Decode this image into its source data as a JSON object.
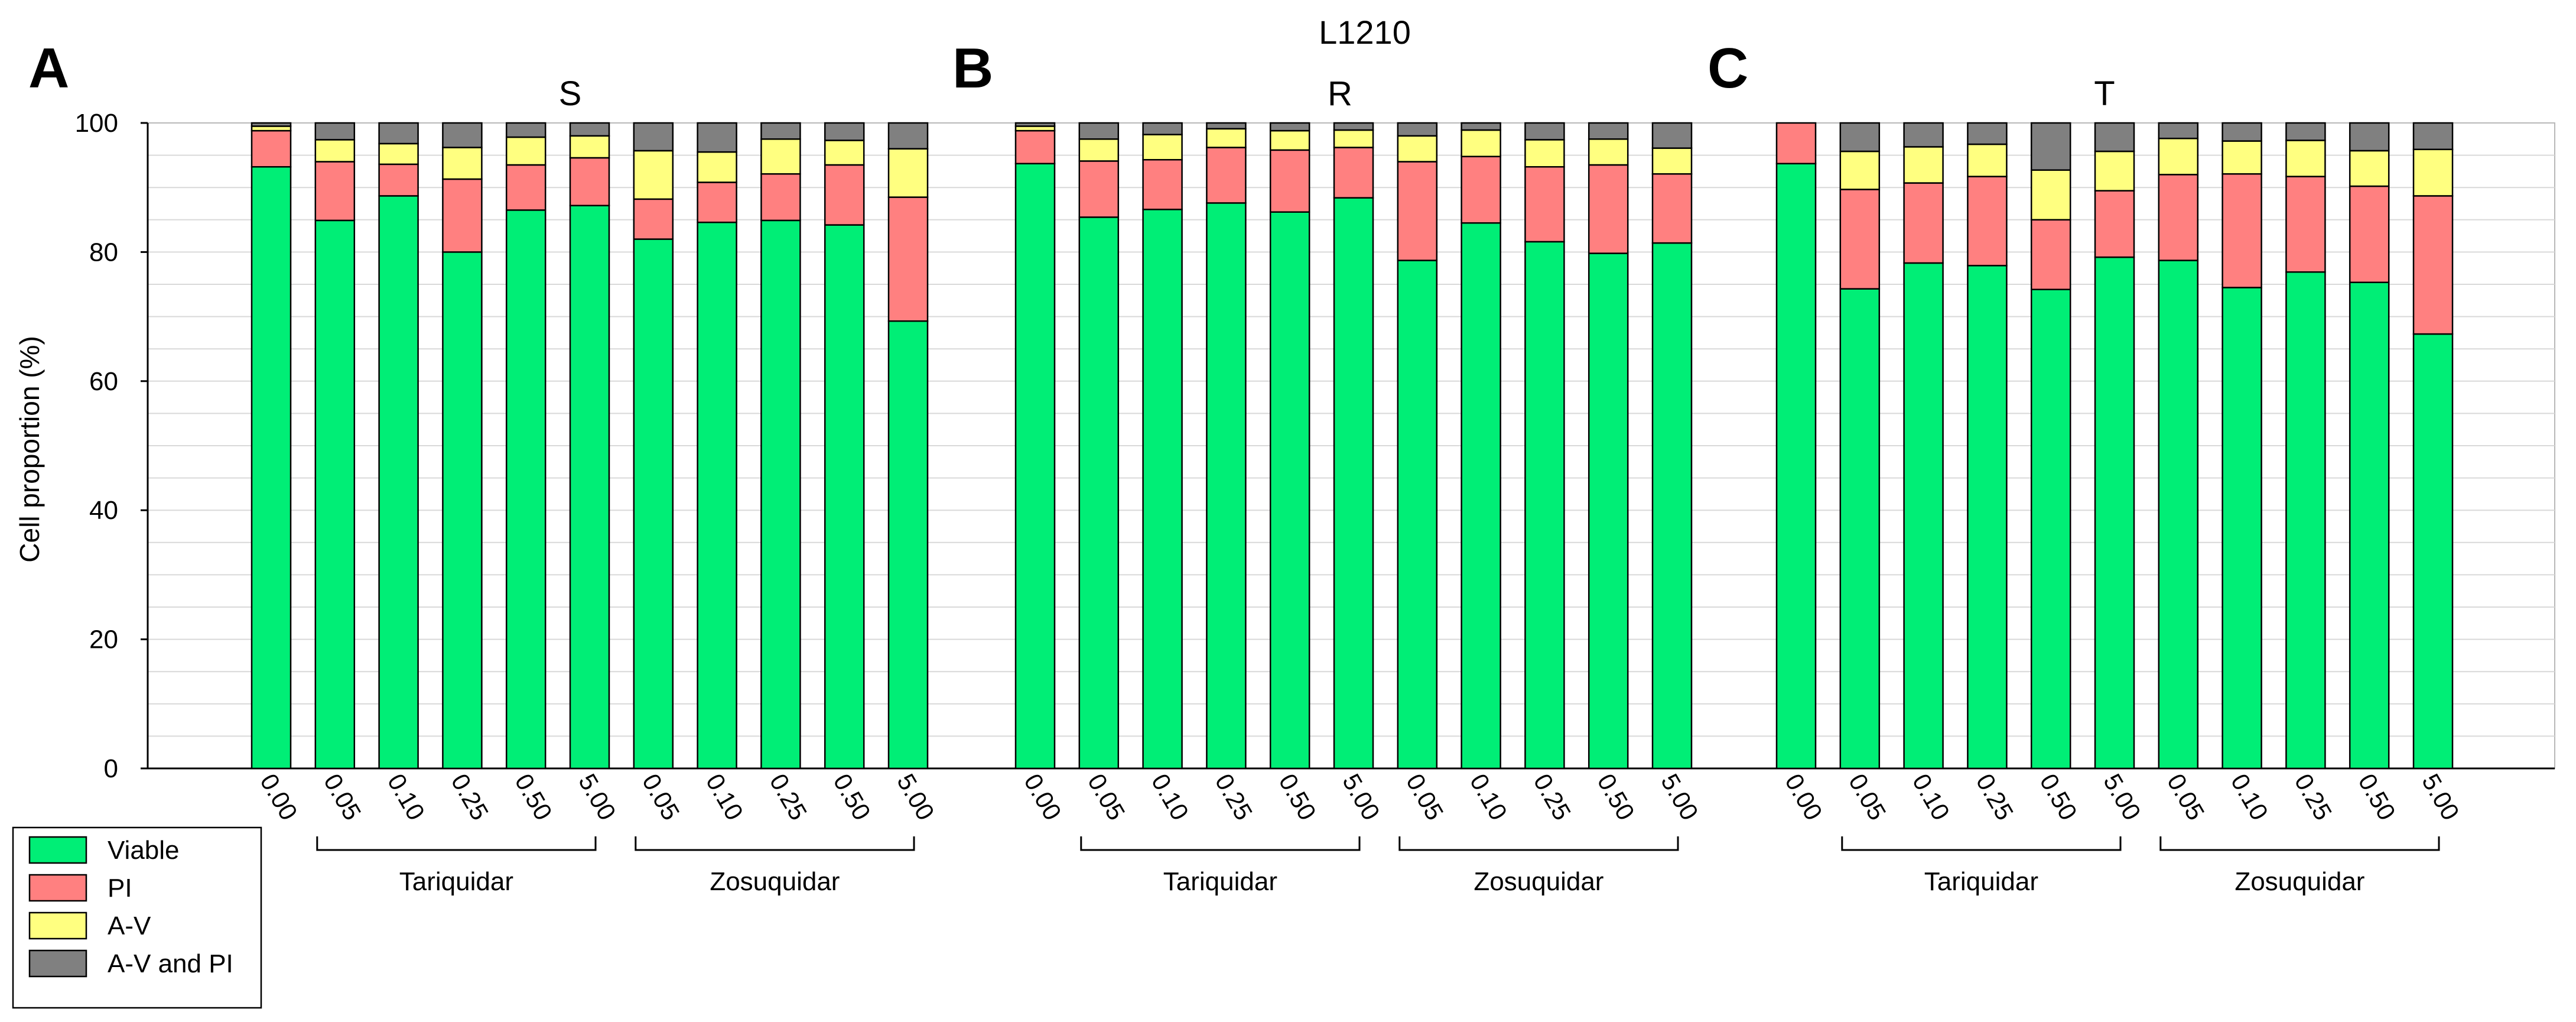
{
  "chart_data": {
    "type": "bar",
    "stacked": true,
    "title": "L1210",
    "ylabel": "Cell proportion (%)",
    "xlabel": "",
    "ylim": [
      0,
      100
    ],
    "yticks": [
      0,
      20,
      40,
      60,
      80,
      100
    ],
    "grid": true,
    "colors": {
      "Viable": "#00ee76",
      "PI": "#ff8080",
      "A-V": "#ffff80",
      "A-V and PI": "#808080"
    },
    "legend": {
      "position": "bottom-left",
      "entries": [
        "Viable",
        "PI",
        "A-V",
        "A-V and PI"
      ]
    },
    "series_names": [
      "Viable",
      "PI",
      "A-V",
      "A-V and PI"
    ],
    "categories": [
      "0.00",
      "0.05",
      "0.10",
      "0.25",
      "0.50",
      "5.00",
      "0.05",
      "0.10",
      "0.25",
      "0.50",
      "5.00"
    ],
    "groups": [
      {
        "label": "Tariquidar",
        "from": 1,
        "to": 5
      },
      {
        "label": "Zosuquidar",
        "from": 6,
        "to": 10
      }
    ],
    "panels": [
      {
        "letter": "A",
        "subtitle": "S",
        "stacks": {
          "Viable": [
            93.2,
            84.9,
            88.7,
            80.0,
            86.5,
            87.2,
            82.0,
            84.6,
            84.9,
            84.2,
            69.3
          ],
          "PI": [
            5.6,
            9.1,
            4.9,
            11.3,
            7.0,
            7.4,
            6.2,
            6.2,
            7.2,
            9.3,
            19.2
          ],
          "A-V": [
            0.7,
            3.4,
            3.2,
            4.9,
            4.3,
            3.4,
            7.5,
            4.7,
            5.4,
            3.8,
            7.5
          ],
          "A-V and PI": [
            0.5,
            2.6,
            3.2,
            3.8,
            2.2,
            2.0,
            4.3,
            4.5,
            2.5,
            2.7,
            4.0
          ]
        }
      },
      {
        "letter": "B",
        "subtitle": "R",
        "stacks": {
          "Viable": [
            93.7,
            85.4,
            86.6,
            87.6,
            86.2,
            88.4,
            78.7,
            84.5,
            81.6,
            79.8,
            81.4
          ],
          "PI": [
            5.1,
            8.7,
            7.7,
            8.6,
            9.6,
            7.8,
            15.3,
            10.3,
            11.6,
            13.7,
            10.7
          ],
          "A-V": [
            0.7,
            3.4,
            3.9,
            2.9,
            3.0,
            2.7,
            4.0,
            4.1,
            4.2,
            4.0,
            4.0
          ],
          "A-V and PI": [
            0.5,
            2.5,
            1.8,
            0.9,
            1.2,
            1.1,
            2.0,
            1.1,
            2.6,
            2.5,
            3.9
          ]
        }
      },
      {
        "letter": "C",
        "subtitle": "T",
        "stacks": {
          "Viable": [
            93.7,
            74.3,
            78.3,
            77.9,
            74.2,
            79.2,
            78.7,
            74.5,
            76.9,
            75.3,
            67.3
          ],
          "PI": [
            6.3,
            15.4,
            12.4,
            13.8,
            10.8,
            10.3,
            13.3,
            17.6,
            14.8,
            14.9,
            21.4
          ],
          "A-V": [
            0.0,
            5.9,
            5.6,
            5.0,
            7.7,
            6.1,
            5.6,
            5.1,
            5.6,
            5.5,
            7.2
          ],
          "A-V and PI": [
            0.0,
            4.4,
            3.7,
            3.3,
            7.3,
            4.4,
            2.4,
            2.8,
            2.7,
            4.3,
            4.1
          ]
        }
      }
    ]
  }
}
